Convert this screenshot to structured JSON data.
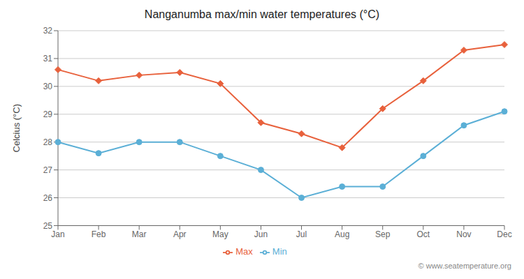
{
  "chart_data": {
    "type": "line",
    "title": "Nanganumba max/min water temperatures (°C)",
    "y_label": "Celcius (°C)",
    "categories": [
      "Jan",
      "Feb",
      "Mar",
      "Apr",
      "May",
      "Jun",
      "Jul",
      "Aug",
      "Sep",
      "Oct",
      "Nov",
      "Dec"
    ],
    "series": [
      {
        "name": "Max",
        "color": "#e8613c",
        "marker": "diamond",
        "values": [
          30.6,
          30.2,
          30.4,
          30.5,
          30.1,
          28.7,
          28.3,
          27.8,
          29.2,
          30.2,
          31.3,
          31.5
        ]
      },
      {
        "name": "Min",
        "color": "#5bafd6",
        "marker": "circle",
        "values": [
          28.0,
          27.6,
          28.0,
          28.0,
          27.5,
          27.0,
          26.0,
          26.4,
          26.4,
          27.5,
          28.6,
          29.1
        ]
      }
    ],
    "ylim": [
      25,
      32
    ],
    "yticks": [
      25,
      26,
      27,
      28,
      29,
      30,
      31,
      32
    ],
    "grid": true,
    "legend": "bottom",
    "annotations": [
      "© www.seatemperature.org"
    ]
  }
}
